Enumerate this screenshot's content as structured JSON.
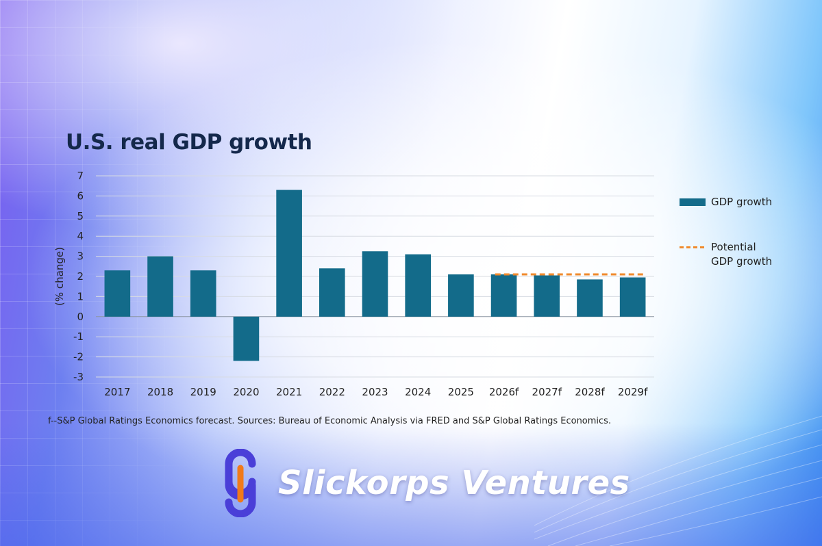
{
  "chart_data": {
    "type": "bar",
    "title": "U.S. real GDP growth",
    "ylabel": "(% change)",
    "xlabel": "",
    "ylim": [
      -3,
      7
    ],
    "yticks": [
      7,
      6,
      5,
      4,
      3,
      2,
      1,
      0,
      -1,
      -2,
      -3
    ],
    "categories": [
      "2017",
      "2018",
      "2019",
      "2020",
      "2021",
      "2022",
      "2023",
      "2024",
      "2025",
      "2026f",
      "2027f",
      "2028f",
      "2029f"
    ],
    "series": [
      {
        "name": "GDP growth",
        "values": [
          2.3,
          3.0,
          2.3,
          -2.2,
          6.3,
          2.4,
          3.25,
          3.1,
          2.1,
          2.1,
          2.05,
          1.85,
          1.95
        ],
        "color": "#136b8a"
      }
    ],
    "reference_line": {
      "name_line1": "Potential",
      "name_line2": "GDP growth",
      "value": 2.1,
      "start_category": "2026f",
      "color": "#f08a2c"
    },
    "grid": true,
    "legend_position": "right"
  },
  "footnote": "f--S&P Global Ratings Economics forecast. Sources: Bureau of Economic Analysis via FRED and S&P Global Ratings Economics.",
  "brand": {
    "name": "Slickorps Ventures",
    "logo_icon": "s-link-logo-icon",
    "logo_colors": [
      "#4a3fd8",
      "#f07a1a"
    ]
  }
}
